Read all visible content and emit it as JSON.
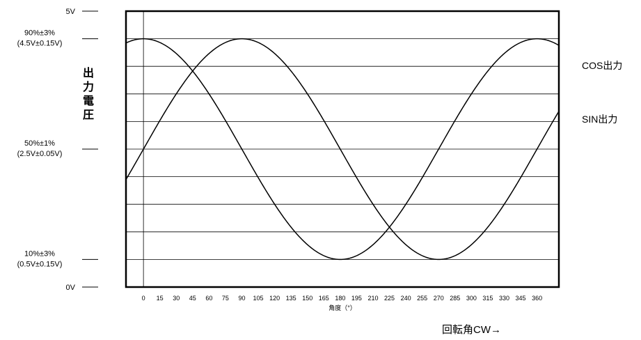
{
  "chart_data": {
    "type": "line",
    "xlabel": "角度（°）",
    "ylabel": "出力電圧",
    "footer_label": "回転角CW→",
    "x_ticks": [
      "0",
      "15",
      "30",
      "45",
      "60",
      "75",
      "90",
      "105",
      "120",
      "135",
      "150",
      "165",
      "180",
      "195",
      "210",
      "225",
      "240",
      "255",
      "270",
      "285",
      "300",
      "315",
      "330",
      "345",
      "360"
    ],
    "x_range": [
      -16,
      380
    ],
    "y_range": [
      0,
      5
    ],
    "y_labels": [
      {
        "value": 5.0,
        "lines": [
          "5V"
        ]
      },
      {
        "value": 4.5,
        "lines": [
          "90%±3%",
          "(4.5V±0.15V)"
        ]
      },
      {
        "value": 2.5,
        "lines": [
          "50%±1%",
          "(2.5V±0.05V)"
        ]
      },
      {
        "value": 0.5,
        "lines": [
          "10%±3%",
          "(0.5V±0.15V)"
        ]
      },
      {
        "value": 0.0,
        "lines": [
          "0V"
        ]
      }
    ],
    "gridlines_y": [
      0.5,
      1.0,
      1.5,
      2.0,
      2.5,
      3.0,
      3.5,
      4.0,
      4.5
    ],
    "series": [
      {
        "name": "COS出力",
        "x": [
          -15,
          0,
          15,
          30,
          45,
          60,
          75,
          90,
          105,
          120,
          135,
          150,
          165,
          180,
          195,
          210,
          225,
          240,
          255,
          270,
          285,
          300,
          315,
          330,
          345,
          360,
          375
        ],
        "y": [
          4.43,
          4.5,
          4.43,
          4.23,
          3.91,
          3.5,
          3.02,
          2.5,
          1.98,
          1.5,
          1.09,
          0.77,
          0.57,
          0.5,
          0.57,
          0.77,
          1.09,
          1.5,
          1.98,
          2.5,
          3.02,
          3.5,
          3.91,
          4.23,
          4.43,
          4.5,
          4.43
        ]
      },
      {
        "name": "SIN出力",
        "x": [
          -15,
          0,
          15,
          30,
          45,
          60,
          75,
          90,
          105,
          120,
          135,
          150,
          165,
          180,
          195,
          210,
          225,
          240,
          255,
          270,
          285,
          300,
          315,
          330,
          345,
          360,
          375
        ],
        "y": [
          1.98,
          2.5,
          3.02,
          3.5,
          3.91,
          4.23,
          4.43,
          4.5,
          4.43,
          4.23,
          3.91,
          3.5,
          3.02,
          2.5,
          1.98,
          1.5,
          1.09,
          0.77,
          0.57,
          0.5,
          0.57,
          0.77,
          1.09,
          1.5,
          1.98,
          2.5,
          3.02
        ]
      }
    ],
    "grid": true,
    "vertical_ref_line_x": 0,
    "legend_placement": "right, labels beside curves"
  }
}
